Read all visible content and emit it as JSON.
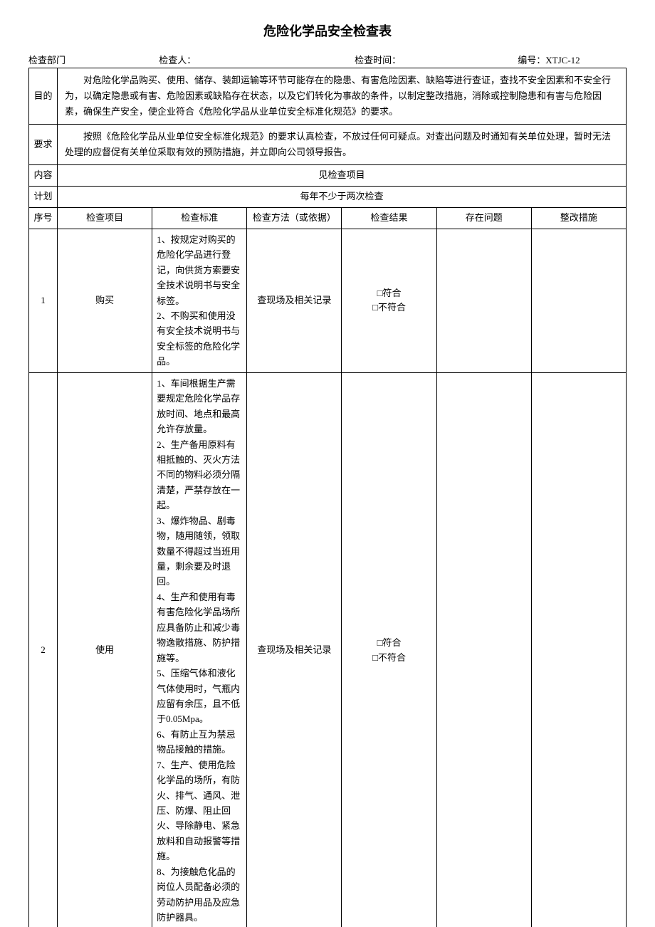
{
  "title": "危险化学品安全检查表",
  "header": {
    "dept_label": "检查部门",
    "inspector_label": "检查人：",
    "time_label": "检查时间：",
    "code_label": "编号：",
    "code_value": "XTJC-12"
  },
  "sections": {
    "purpose_label": "目的",
    "purpose_text": "对危险化学品购买、使用、储存、装卸运输等环节可能存在的隐患、有害危险因素、缺陷等进行查证，查找不安全因素和不安全行为，以确定隐患或有害、危险因素或缺陷存在状态，以及它们转化为事故的条件，以制定整改措施，消除或控制隐患和有害与危险因素，确保生产安全，使企业符合《危险化学品从业单位安全标准化规范》的要求。",
    "requirement_label": "要求",
    "requirement_text": "按照《危险化学品从业单位安全标准化规范》的要求认真检查，不放过任何可疑点。对查出问题及时通知有关单位处理，暂时无法处理的应督促有关单位采取有效的预防措施，并立即向公司领导报告。",
    "content_label": "内容",
    "content_text": "见检查项目",
    "plan_label": "计划",
    "plan_text": "每年不少于两次检查"
  },
  "columns": {
    "seq": "序号",
    "item": "检查项目",
    "standard": "检查标准",
    "method": "检查方法（或依据）",
    "result": "检查结果",
    "problem": "存在问题",
    "action": "整改措施"
  },
  "rows": [
    {
      "seq": "1",
      "item": "购买",
      "standard": [
        "1、按规定对购买的危险化学品进行登记，向供货方索要安全技术说明书与安全标签。",
        "2、不购买和使用没有安全技术说明书与安全标签的危险化学品。"
      ],
      "method": "查现场及相关记录",
      "result": [
        "□符合",
        "□不符合"
      ]
    },
    {
      "seq": "2",
      "item": "使用",
      "standard": [
        "1、车间根据生产需要规定危险化学品存放时间、地点和最高允许存放量。",
        "2、生产备用原料有相抵触的、灭火方法不同的物料必须分隔清楚，严禁存放在一起。",
        "3、爆炸物品、剧毒物，随用随领，领取数量不得超过当班用量，剩余要及时退回。",
        "4、生产和使用有毒有害危险化学品场所应具备防止和减少毒物逸散措施、防护措施等。",
        "5、压缩气体和液化气体使用时，气瓶内应留有余压，且不低于0.05Mpa。",
        "6、有防止互为禁忌物品接触的措施。",
        "7、生产、使用危险化学品的场所，有防火、排气、通风、泄压、防爆、阻止回火、导除静电、紧急放料和自动报警等措施。",
        "8、为接触危化品的岗位人员配备必须的劳动防护用品及应急防护器具。"
      ],
      "method": "查现场及相关记录",
      "result": [
        "□符合",
        "□不符合"
      ]
    }
  ]
}
